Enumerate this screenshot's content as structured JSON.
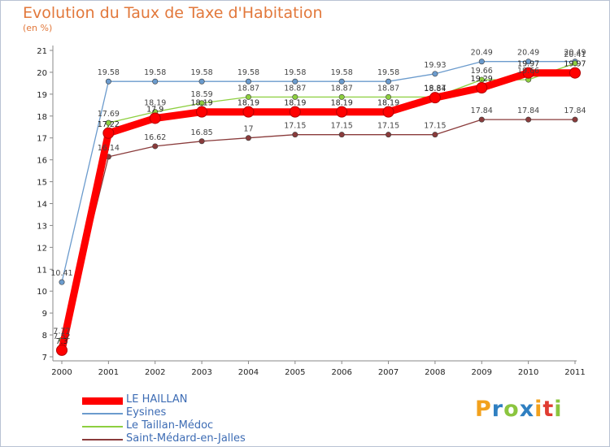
{
  "header": {
    "title": "Evolution du Taux de Taxe d'Habitation",
    "unit": "(en %)"
  },
  "chart_data": {
    "type": "line",
    "title": "Evolution du Taux de Taxe d'Habitation",
    "ylabel": "(en %)",
    "xlabel": "",
    "x": [
      "2000",
      "2001",
      "2002",
      "2003",
      "2004",
      "2005",
      "2006",
      "2007",
      "2008",
      "2009",
      "2010",
      "2011"
    ],
    "ylim": [
      7,
      21
    ],
    "yticks": [
      7,
      8,
      9,
      10,
      11,
      12,
      13,
      14,
      15,
      16,
      17,
      18,
      19,
      20,
      21
    ],
    "grid": false,
    "series": [
      {
        "name": "LE HAILLAN",
        "color": "#ff0000",
        "values": [
          7.3,
          17.22,
          17.9,
          18.19,
          18.19,
          18.19,
          18.19,
          18.19,
          18.84,
          19.29,
          19.97,
          19.97
        ],
        "labels": [
          "7.3",
          "17.22",
          "17.9",
          "18.19",
          "18.19",
          "18.19",
          "18.19",
          "18.19",
          "18.84",
          "19.29",
          "19.97",
          "19.97"
        ]
      },
      {
        "name": "Eysines",
        "color": "#6b9bcd",
        "values": [
          10.41,
          19.58,
          19.58,
          19.58,
          19.58,
          19.58,
          19.58,
          19.58,
          19.93,
          20.49,
          20.49,
          20.49
        ],
        "labels": [
          "10.41",
          "19.58",
          "19.58",
          "19.58",
          "19.58",
          "19.58",
          "19.58",
          "19.58",
          "19.93",
          "20.49",
          "20.49",
          "20.49"
        ]
      },
      {
        "name": "Le Taillan-Médoc",
        "color": "#8dcf3f",
        "values": [
          7.77,
          17.69,
          18.19,
          18.59,
          18.87,
          18.87,
          18.87,
          18.87,
          18.87,
          19.66,
          19.66,
          20.41
        ],
        "labels": [
          "7.77",
          "17.69",
          "18.19",
          "18.59",
          "18.87",
          "18.87",
          "18.87",
          "18.87",
          "18.87",
          "19.66",
          "19.66",
          "20.41"
        ]
      },
      {
        "name": "Saint-Médard-en-Jalles",
        "color": "#8a3b3b",
        "values": [
          7.52,
          16.14,
          16.62,
          16.85,
          17.0,
          17.15,
          17.15,
          17.15,
          17.15,
          17.84,
          17.84,
          17.84
        ],
        "labels": [
          "7.52",
          "16.14",
          "16.62",
          "16.85",
          "17",
          "17.15",
          "17.15",
          "17.15",
          "17.15",
          "17.84",
          "17.84",
          "17.84"
        ]
      }
    ]
  },
  "legend": [
    {
      "label": "LE HAILLAN",
      "color": "#ff0000"
    },
    {
      "label": "Eysines",
      "color": "#6b9bcd"
    },
    {
      "label": "Le Taillan-Médoc",
      "color": "#8dcf3f"
    },
    {
      "label": "Saint-Médard-en-Jalles",
      "color": "#8a3b3b"
    }
  ],
  "logo": {
    "letters": [
      "P",
      "r",
      "o",
      "x",
      "i",
      "t",
      "i"
    ],
    "colors": [
      "#f2a11d",
      "#2f7fc1",
      "#8bc53f",
      "#2f7fc1",
      "#f2a11d",
      "#e03c31",
      "#8bc53f"
    ]
  }
}
